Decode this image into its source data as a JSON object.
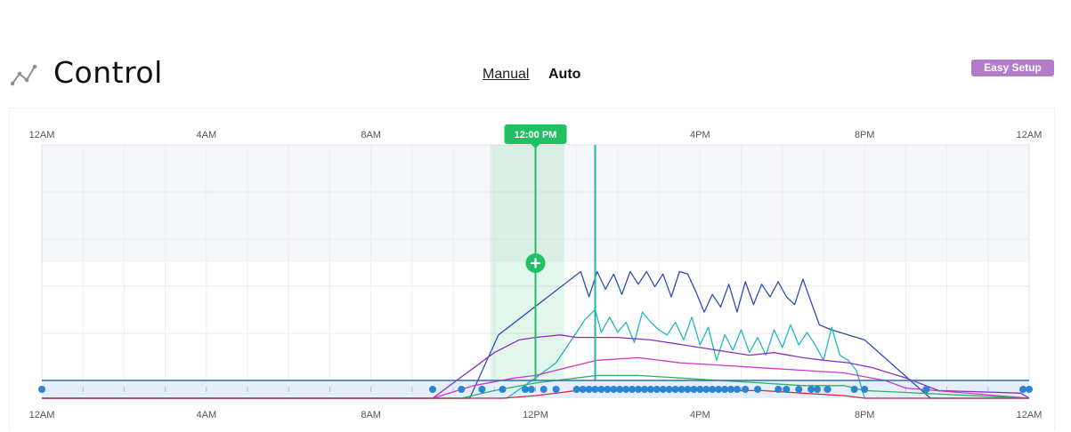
{
  "header": {
    "title": "Control",
    "title_icon": "line-chart-icon",
    "modes": [
      {
        "label": "Manual",
        "active": false
      },
      {
        "label": "Auto",
        "active": true
      }
    ],
    "easy_setup_label": "Easy Setup",
    "easy_setup_color": "#b57bcb"
  },
  "timeline": {
    "current_time_label": "12:00 PM",
    "current_time_hour": 12,
    "selection_hours": [
      10.9,
      12.7
    ],
    "add_point_icon": "plus-circle-icon",
    "secondary_marker_hour": 13.45,
    "accent_color": "#22c065",
    "secondary_marker_color": "#1fb5b5",
    "event_dot_color": "#2d84d2"
  },
  "chart_data": {
    "type": "line",
    "x_unit": "hour",
    "xlim": [
      0,
      24
    ],
    "ylim": [
      0,
      100
    ],
    "grid": true,
    "top_tick_labels": [
      "12AM",
      "4AM",
      "8AM",
      "12:00 PM",
      "4PM",
      "8PM",
      "12AM"
    ],
    "bottom_tick_labels": [
      "12AM",
      "4AM",
      "8AM",
      "12PM",
      "4PM",
      "8PM",
      "12AM"
    ],
    "tick_hours": [
      0,
      4,
      8,
      12,
      16,
      20,
      24
    ],
    "series": [
      {
        "color": "#2d4fb5",
        "x": [
          0,
          10.4,
          11.1,
          13.1,
          13.3,
          13.5,
          13.7,
          13.9,
          14.1,
          14.3,
          14.5,
          14.7,
          14.9,
          15.1,
          15.3,
          15.5,
          15.7,
          15.9,
          16.1,
          16.3,
          16.5,
          16.7,
          16.9,
          17.1,
          17.3,
          17.5,
          17.7,
          17.9,
          18.1,
          18.3,
          18.5,
          18.9,
          19.2,
          20.0,
          21.6,
          24
        ],
        "y": [
          0,
          0,
          25,
          50,
          40,
          50,
          43,
          49,
          41,
          50,
          45,
          50,
          44,
          49,
          40,
          50,
          49,
          42,
          34,
          41,
          36,
          45,
          34,
          46,
          37,
          45,
          40,
          46,
          40,
          37,
          47,
          29,
          27,
          23,
          0,
          0
        ]
      },
      {
        "color": "#24b5c1",
        "x": [
          0,
          11.3,
          12.0,
          12.5,
          13.0,
          13.2,
          13.45,
          13.6,
          13.8,
          14.0,
          14.2,
          14.4,
          14.6,
          14.8,
          15.0,
          15.2,
          15.4,
          15.6,
          15.8,
          16.0,
          16.2,
          16.4,
          16.6,
          16.8,
          17.0,
          17.2,
          17.4,
          17.6,
          17.8,
          18.0,
          18.2,
          18.4,
          18.6,
          18.8,
          19.0,
          19.2,
          19.4,
          19.6,
          19.8,
          20.0,
          24
        ],
        "y": [
          0,
          0,
          8,
          14,
          26,
          31,
          35,
          26,
          32,
          26,
          30,
          22,
          34,
          30,
          27,
          25,
          30,
          23,
          32,
          21,
          28,
          15,
          25,
          19,
          27,
          18,
          24,
          17,
          27,
          20,
          29,
          21,
          26,
          21,
          15,
          28,
          17,
          15,
          11,
          0,
          0
        ]
      },
      {
        "color": "#8a2fc2",
        "x": [
          0,
          9.5,
          11.0,
          11.6,
          12.0,
          12.6,
          13.0,
          13.5,
          14.0,
          14.8,
          15.6,
          16.4,
          17.2,
          17.8,
          18.5,
          19.0,
          19.6,
          20.2,
          21.0,
          21.8,
          23.8,
          24
        ],
        "y": [
          0,
          0,
          18,
          23,
          24,
          25,
          24,
          24,
          24,
          23,
          21,
          19,
          17,
          18,
          16,
          15,
          14,
          12,
          8,
          3,
          2,
          0
        ]
      },
      {
        "color": "#d037c7",
        "x": [
          0,
          9.5,
          10.5,
          11.5,
          12.0,
          12.5,
          13.5,
          14.5,
          15.5,
          16.5,
          17.5,
          18.5,
          19.5,
          20.5,
          21.0,
          24
        ],
        "y": [
          0,
          0,
          5,
          8,
          9,
          11,
          15,
          16,
          14,
          13,
          12,
          11,
          10,
          7,
          4,
          0
        ]
      },
      {
        "color": "#2faf5b",
        "x": [
          0,
          10.2,
          11.0,
          12.0,
          13.0,
          13.5,
          14.5,
          15.5,
          16.5,
          17.5,
          18.5,
          19.5,
          20.0,
          24
        ],
        "y": [
          0,
          0,
          3,
          6,
          8,
          9,
          9,
          8,
          7,
          6,
          5,
          5,
          3,
          0
        ]
      },
      {
        "color": "#d12d3b",
        "x": [
          0,
          11.2,
          12.0,
          13.0,
          13.5,
          14.5,
          15.5,
          16.5,
          17.5,
          18.5,
          19.5,
          20.0,
          24
        ],
        "y": [
          0,
          0,
          1,
          3,
          4,
          4,
          3,
          3,
          3,
          2,
          1,
          0,
          0
        ]
      }
    ],
    "event_hours": [
      0,
      9.5,
      10.2,
      10.7,
      11.2,
      11.75,
      11.9,
      12.2,
      12.5,
      13.0,
      13.15,
      13.3,
      13.45,
      13.6,
      13.75,
      13.9,
      14.05,
      14.2,
      14.35,
      14.5,
      14.65,
      14.8,
      14.95,
      15.1,
      15.25,
      15.4,
      15.55,
      15.7,
      15.85,
      16.0,
      16.15,
      16.3,
      16.45,
      16.6,
      16.75,
      16.9,
      17.1,
      17.4,
      17.9,
      18.1,
      18.4,
      18.7,
      18.85,
      19.1,
      19.75,
      20.0,
      21.5,
      23.85,
      24
    ]
  }
}
